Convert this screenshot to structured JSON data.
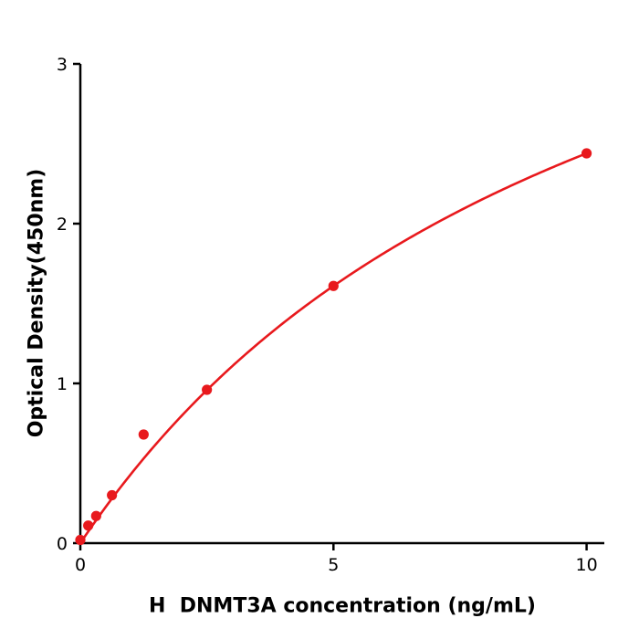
{
  "figure": {
    "background": "#ffffff"
  },
  "chart_data": {
    "type": "scatter",
    "title": "",
    "xlabel": "H  DNMT3A concentration (ng/mL)",
    "ylabel": "Optical Density(450nm)",
    "x": [
      0,
      0.156,
      0.3125,
      0.625,
      1.25,
      2.5,
      5,
      10
    ],
    "y": [
      0.02,
      0.11,
      0.17,
      0.3,
      0.68,
      0.96,
      1.61,
      2.44
    ],
    "xlim": [
      0,
      10.35
    ],
    "ylim": [
      0,
      3
    ],
    "xticks": [
      0,
      5,
      10
    ],
    "yticks": [
      0,
      1,
      2,
      3
    ],
    "grid": false,
    "legend": null,
    "marker_color": "#e8191d",
    "line_color": "#e8191d",
    "axis_color": "#000000",
    "fit": "smooth saturating (hyperbolic) curve through points"
  }
}
